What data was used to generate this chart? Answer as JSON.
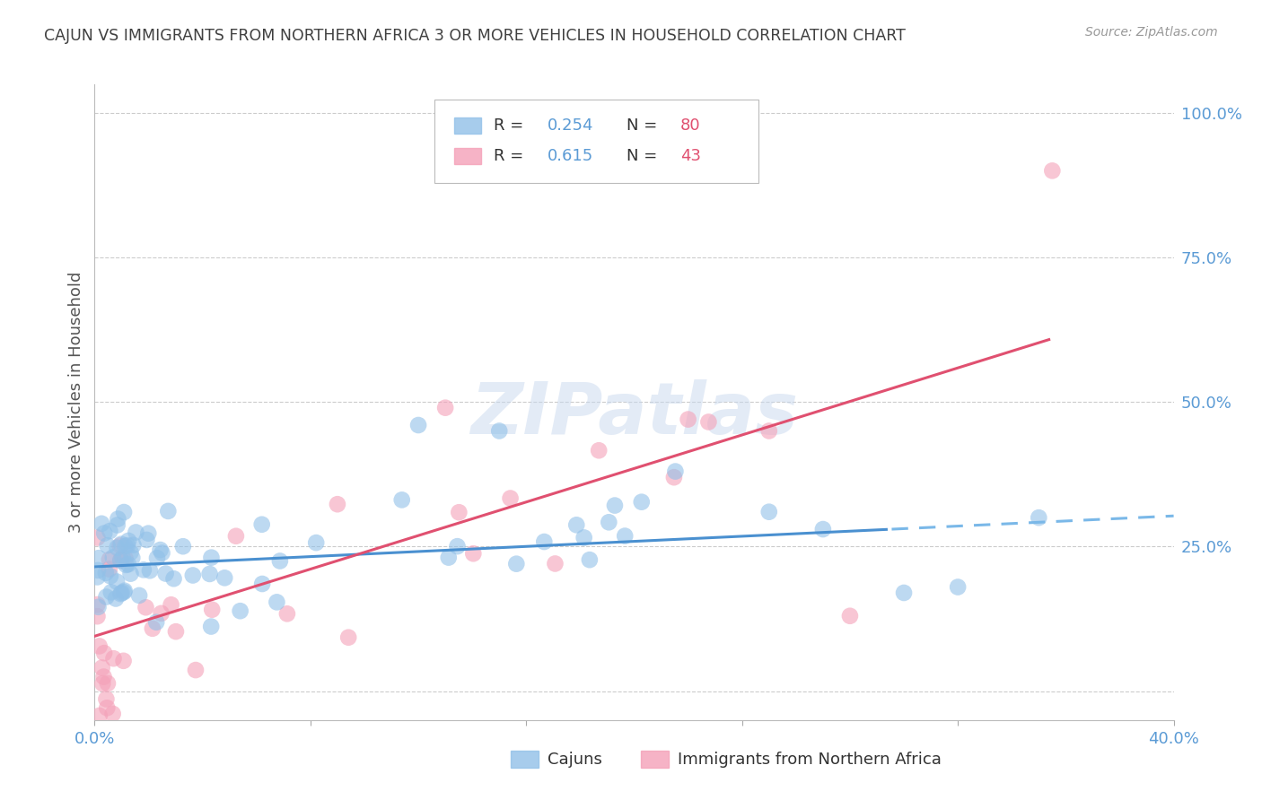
{
  "title": "CAJUN VS IMMIGRANTS FROM NORTHERN AFRICA 3 OR MORE VEHICLES IN HOUSEHOLD CORRELATION CHART",
  "source": "Source: ZipAtlas.com",
  "ylabel": "3 or more Vehicles in Household",
  "xlim": [
    0.0,
    0.4
  ],
  "ylim": [
    -0.05,
    1.05
  ],
  "R_cajun": 0.254,
  "N_cajun": 80,
  "R_immig": 0.615,
  "N_immig": 43,
  "cajun_color": "#91c0e8",
  "immig_color": "#f4a0b8",
  "cajun_line_color": "#4a90d0",
  "immig_line_color": "#e05070",
  "cajun_line_dash_color": "#7ab8e8",
  "watermark_color": "#d0dff0",
  "background_color": "#ffffff",
  "grid_color": "#cccccc",
  "tick_label_color": "#5b9bd5",
  "title_color": "#404040",
  "legend_text_color": "#333333",
  "legend_value_color": "#5b9bd5",
  "legend_n_color": "#e05070",
  "source_color": "#999999"
}
